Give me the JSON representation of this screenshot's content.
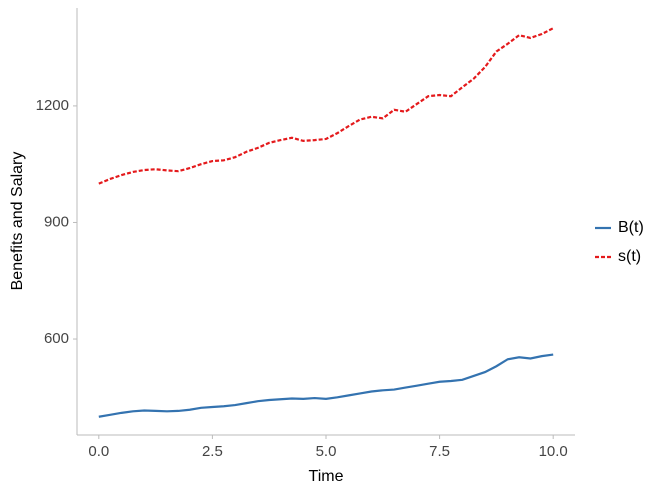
{
  "chart_data": {
    "type": "line",
    "xlabel": "Time",
    "ylabel": "Benefits and Salary",
    "x": [
      0,
      0.25,
      0.5,
      0.75,
      1,
      1.25,
      1.5,
      1.75,
      2,
      2.25,
      2.5,
      2.75,
      3,
      3.25,
      3.5,
      3.75,
      4,
      4.25,
      4.5,
      4.75,
      5,
      5.25,
      5.5,
      5.75,
      6,
      6.25,
      6.5,
      6.75,
      7,
      7.25,
      7.5,
      7.75,
      8,
      8.25,
      8.5,
      8.75,
      9,
      9.25,
      9.5,
      9.75,
      10
    ],
    "series": [
      {
        "name": "B(t)",
        "color": "#3473b0",
        "dash": false,
        "values": [
          400,
          405,
          410,
          414,
          416,
          415,
          414,
          415,
          418,
          423,
          425,
          427,
          430,
          435,
          440,
          443,
          445,
          447,
          446,
          448,
          446,
          450,
          455,
          460,
          465,
          468,
          470,
          475,
          480,
          485,
          490,
          492,
          495,
          505,
          515,
          530,
          548,
          553,
          550,
          556,
          560
        ]
      },
      {
        "name": "s(t)",
        "color": "#e41a1c",
        "dash": true,
        "values": [
          1000,
          1012,
          1022,
          1030,
          1035,
          1037,
          1034,
          1032,
          1040,
          1050,
          1058,
          1060,
          1068,
          1082,
          1092,
          1105,
          1112,
          1118,
          1110,
          1112,
          1115,
          1130,
          1148,
          1165,
          1172,
          1168,
          1190,
          1185,
          1205,
          1225,
          1228,
          1225,
          1248,
          1270,
          1300,
          1340,
          1360,
          1382,
          1375,
          1385,
          1400
        ]
      }
    ],
    "xlim": [
      -0.48,
      10.48
    ],
    "ylim": [
      353,
      1452
    ],
    "xticks": [
      {
        "value": 0,
        "label": "0.0"
      },
      {
        "value": 2.5,
        "label": "2.5"
      },
      {
        "value": 5,
        "label": "5.0"
      },
      {
        "value": 7.5,
        "label": "7.5"
      },
      {
        "value": 10,
        "label": "10.0"
      }
    ],
    "yticks": [
      600,
      900,
      1200
    ],
    "grid": false,
    "legend": "right"
  }
}
